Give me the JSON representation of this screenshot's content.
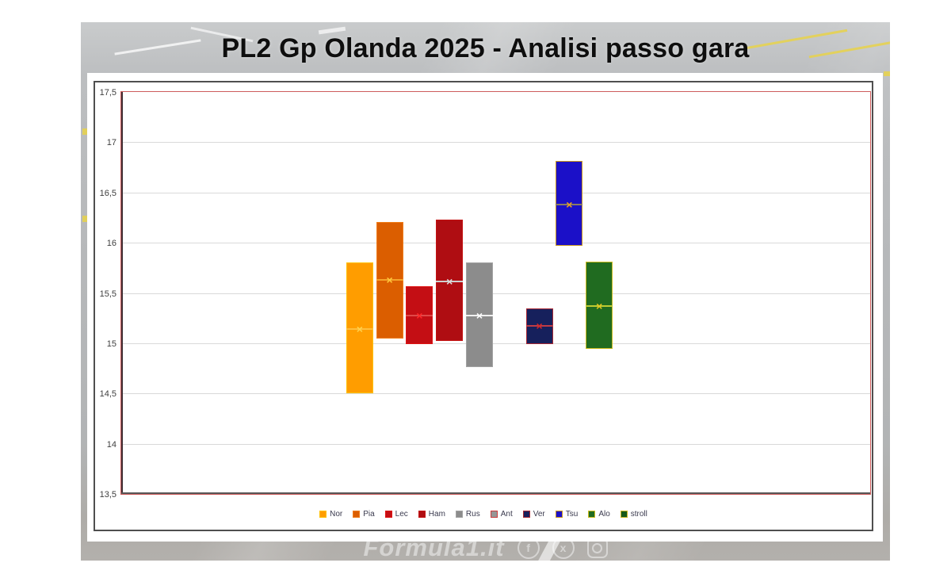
{
  "title": "PL2 Gp Olanda 2025 - Analisi passo gara",
  "watermark": {
    "text": "Formula1.it",
    "icons": [
      "facebook-icon",
      "x-social-icon",
      "instagram-icon"
    ],
    "facebook_glyph": "f",
    "x_glyph": "x"
  },
  "chart_data": {
    "type": "bar",
    "subtype": "floating-range-bars-with-mean-marker",
    "title": "PL2 Gp Olanda 2025 - Analisi passo gara",
    "xlabel": "",
    "ylabel": "",
    "ylim": [
      13.5,
      17.5
    ],
    "ytick_step": 0.5,
    "yticks": [
      "17,5",
      "17",
      "16,5",
      "16",
      "15,5",
      "15",
      "14,5",
      "14",
      "13,5"
    ],
    "grid": true,
    "legend_position": "bottom",
    "marker_glyph": "×",
    "series": [
      {
        "name": "Nor",
        "low": 14.5,
        "high": 15.8,
        "mean": 15.15,
        "fill": "#FF9D00",
        "border": "#FFC000",
        "marker": "#FFD24D",
        "line": "#FFBE3C"
      },
      {
        "name": "Pia",
        "low": 15.05,
        "high": 16.21,
        "mean": 15.64,
        "fill": "#DB5E00",
        "border": "#F07C14",
        "marker": "#FFC83C",
        "line": "#F5A32A"
      },
      {
        "name": "Lec",
        "low": 14.99,
        "high": 15.57,
        "mean": 15.28,
        "fill": "#C40E14",
        "border": "#E01414",
        "marker": "#FF2A2A",
        "line": "#E04848"
      },
      {
        "name": "Ham",
        "low": 15.02,
        "high": 16.23,
        "mean": 15.62,
        "fill": "#AF0D12",
        "border": "#C41212",
        "marker": "#DCDCDC",
        "line": "#CFCFCF"
      },
      {
        "name": "Rus",
        "low": 14.76,
        "high": 15.8,
        "mean": 15.28,
        "fill": "#8C8C8C",
        "border": "#A2A2A2",
        "marker": "#FFFFFF",
        "line": "#F0F0F0"
      },
      {
        "name": "Ant",
        "low": null,
        "high": null,
        "mean": null,
        "fill": "#969696",
        "border": "#CC3C3C"
      },
      {
        "name": "Ver",
        "low": 14.99,
        "high": 15.35,
        "mean": 15.18,
        "fill": "#16205C",
        "border": "#A82834",
        "marker": "#D42828",
        "line": "#BE3C46"
      },
      {
        "name": "Tsu",
        "low": 15.97,
        "high": 16.81,
        "mean": 16.39,
        "fill": "#1B10C8",
        "border": "#C8961E",
        "marker": "#EBA21E",
        "line": "#8C7C64"
      },
      {
        "name": "Alo",
        "low": 14.94,
        "high": 15.81,
        "mean": 15.38,
        "fill": "#206B20",
        "border": "#CDBC1E",
        "marker": "#E6C81E",
        "line": "#BECB32"
      },
      {
        "name": "stroll",
        "low": null,
        "high": null,
        "mean": null,
        "fill": "#155A1C",
        "border": "#C8B41E"
      }
    ]
  }
}
